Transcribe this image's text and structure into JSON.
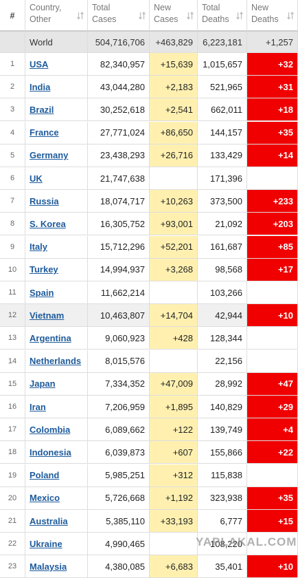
{
  "header": [
    "#",
    "Country,\nOther",
    "Total\nCases",
    "New\nCases",
    "Total\nDeaths",
    "New\nDeaths"
  ],
  "world": [
    "World",
    "504,716,706",
    "+463,829",
    "6,223,181",
    "+1,257"
  ],
  "rows": [
    [
      "1",
      "USA",
      "82,340,957",
      "+15,639",
      "1,015,657",
      "+32"
    ],
    [
      "2",
      "India",
      "43,044,280",
      "+2,183",
      "521,965",
      "+31"
    ],
    [
      "3",
      "Brazil",
      "30,252,618",
      "+2,541",
      "662,011",
      "+18"
    ],
    [
      "4",
      "France",
      "27,771,024",
      "+86,650",
      "144,157",
      "+35"
    ],
    [
      "5",
      "Germany",
      "23,438,293",
      "+26,716",
      "133,429",
      "+14"
    ],
    [
      "6",
      "UK",
      "21,747,638",
      null,
      "171,396",
      null
    ],
    [
      "7",
      "Russia",
      "18,074,717",
      "+10,263",
      "373,500",
      "+233"
    ],
    [
      "8",
      "S. Korea",
      "16,305,752",
      "+93,001",
      "21,092",
      "+203"
    ],
    [
      "9",
      "Italy",
      "15,712,296",
      "+52,201",
      "161,687",
      "+85"
    ],
    [
      "10",
      "Turkey",
      "14,994,937",
      "+3,268",
      "98,568",
      "+17"
    ],
    [
      "11",
      "Spain",
      "11,662,214",
      null,
      "103,266",
      null
    ],
    [
      "12",
      "Vietnam",
      "10,463,807",
      "+14,704",
      "42,944",
      "+10"
    ],
    [
      "13",
      "Argentina",
      "9,060,923",
      "+428",
      "128,344",
      null
    ],
    [
      "14",
      "Netherlands",
      "8,015,576",
      null,
      "22,156",
      null
    ],
    [
      "15",
      "Japan",
      "7,334,352",
      "+47,009",
      "28,992",
      "+47"
    ],
    [
      "16",
      "Iran",
      "7,206,959",
      "+1,895",
      "140,829",
      "+29"
    ],
    [
      "17",
      "Colombia",
      "6,089,662",
      "+122",
      "139,749",
      "+4"
    ],
    [
      "18",
      "Indonesia",
      "6,039,873",
      "+607",
      "155,866",
      "+22"
    ],
    [
      "19",
      "Poland",
      "5,985,251",
      "+312",
      "115,838",
      null
    ],
    [
      "20",
      "Mexico",
      "5,726,668",
      "+1,192",
      "323,938",
      "+35"
    ],
    [
      "21",
      "Australia",
      "5,385,110",
      "+33,193",
      "6,777",
      "+15"
    ],
    [
      "22",
      "Ukraine",
      "4,990,465",
      null,
      "108,220",
      null
    ],
    [
      "23",
      "Malaysia",
      "4,380,085",
      "+6,683",
      "35,401",
      "+10"
    ]
  ],
  "watermark": "YAPLAKAL.COM"
}
